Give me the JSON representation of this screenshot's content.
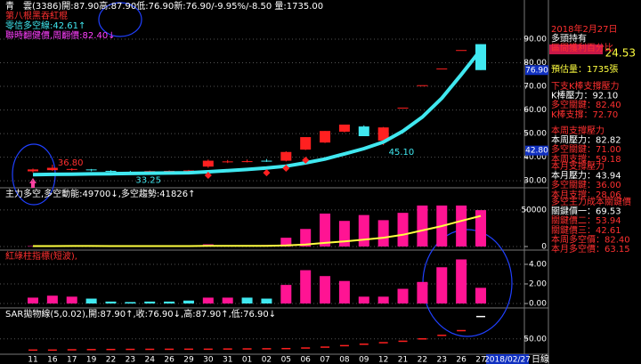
{
  "chart_data": [
    {
      "type": "candlestick",
      "title": "青　雲(3386)開:87.90高:87.90低:76.90新:76.90/-9.95%/-8.50 量:1735.00",
      "subtitles": [
        "第八根黑吞紅棍",
        "零信多空線:42.61↑",
        "聯時翻健價,周翻價:82.40↓"
      ],
      "categories": [
        "11",
        "16",
        "17",
        "19",
        "22",
        "23",
        "24",
        "26",
        "29",
        "30",
        "31",
        "01",
        "02",
        "05",
        "06",
        "07",
        "08",
        "09",
        "12",
        "21",
        "22",
        "23",
        "26",
        "27"
      ],
      "open": [
        34.0,
        34.5,
        34.8,
        34.8,
        34.2,
        33.8,
        33.8,
        34.0,
        34.2,
        36.0,
        38.0,
        38.2,
        38.5,
        38.5,
        43.2,
        46.2,
        50.8,
        53.0,
        47.0,
        61.0,
        70.5,
        77.6,
        85.4,
        87.9
      ],
      "high": [
        35.2,
        36.8,
        35.3,
        35.0,
        34.5,
        34.2,
        34.3,
        34.4,
        34.6,
        39.0,
        38.8,
        39.0,
        39.2,
        42.5,
        48.5,
        51.1,
        53.8,
        53.5,
        52.8,
        61.0,
        70.5,
        77.6,
        85.4,
        87.9
      ],
      "low": [
        33.5,
        34.2,
        34.3,
        34.0,
        33.6,
        33.25,
        33.5,
        33.8,
        34.0,
        35.5,
        37.5,
        37.8,
        38.0,
        38.2,
        43.0,
        46.0,
        50.5,
        48.9,
        45.1,
        61.0,
        70.5,
        77.6,
        85.4,
        76.9
      ],
      "close": [
        34.8,
        35.5,
        35.0,
        34.5,
        34.0,
        33.6,
        34.1,
        34.2,
        34.4,
        38.5,
        38.2,
        38.3,
        38.3,
        42.2,
        48.5,
        51.1,
        53.8,
        48.9,
        52.6,
        61.0,
        70.5,
        77.6,
        85.4,
        76.9
      ],
      "up_color": "#ff2020",
      "down_color": "#40e8f0",
      "line_values": [
        32.6,
        32.7,
        32.8,
        32.9,
        33.0,
        33.1,
        33.2,
        33.3,
        33.4,
        33.8,
        34.3,
        34.8,
        35.4,
        36.2,
        37.6,
        39.2,
        41.4,
        43.6,
        46.4,
        51.0,
        57.0,
        65.0,
        75.0,
        85.5
      ],
      "line_color": "#40e8f0",
      "dots": [
        null,
        null,
        null,
        null,
        null,
        null,
        null,
        null,
        null,
        32.3,
        null,
        null,
        33.4,
        35.3,
        38.7,
        null,
        null,
        null,
        null,
        null,
        null,
        null,
        null,
        null
      ],
      "dot_color": "#ff2020",
      "annotations": [
        {
          "value": 36.8,
          "label": "36.80"
        },
        {
          "value": 33.25,
          "label": "33.25"
        },
        {
          "value": 45.1,
          "label": "45.10"
        }
      ],
      "price_tags": [
        {
          "value": 76.9,
          "label": "76.90"
        },
        {
          "value": 42.8,
          "label": "42.80"
        }
      ],
      "ylim": [
        27.4,
        96.8
      ],
      "yticks": [
        {
          "value": 90,
          "label": "90.00"
        },
        {
          "value": 80,
          "label": "80.00"
        },
        {
          "value": 70,
          "label": "70.00"
        },
        {
          "value": 60,
          "label": "60.00"
        },
        {
          "value": 50,
          "label": "50.00"
        },
        {
          "value": 40,
          "label": "40.00"
        },
        {
          "value": 30,
          "label": "30.00"
        }
      ],
      "grid": true
    },
    {
      "type": "bar",
      "title": "主力多空,多空動能:49700↓,多空趨勢:41826↑",
      "values": [
        600,
        900,
        700,
        500,
        500,
        400,
        600,
        500,
        500,
        3000,
        900,
        1200,
        2000,
        12000,
        24000,
        45000,
        35000,
        43000,
        36000,
        46000,
        56000,
        56000,
        56000,
        49700
      ],
      "color": "#ff1493",
      "line_values": [
        600,
        650,
        700,
        680,
        640,
        600,
        600,
        590,
        580,
        800,
        850,
        900,
        1000,
        1600,
        2800,
        5000,
        7000,
        9500,
        12000,
        16000,
        22000,
        28000,
        35000,
        41826
      ],
      "line_color": "#ffff40",
      "ylim": [
        0,
        79000
      ],
      "yticks": [
        50000,
        0
      ],
      "grid": true
    },
    {
      "type": "bar",
      "title": "紅綠柱指標(短波),",
      "values": [
        0.6,
        0.8,
        0.7,
        0.5,
        0.2,
        0.15,
        0.2,
        0.2,
        0.3,
        0.6,
        0.6,
        0.6,
        0.5,
        1.9,
        3.4,
        2.8,
        2.3,
        0.7,
        0.7,
        1.5,
        2.2,
        3.7,
        4.5,
        1.6
      ],
      "colors": [
        "#ff1493",
        "#ff1493",
        "#ff1493",
        "#40e8f0",
        "#40e8f0",
        "#40e8f0",
        "#40e8f0",
        "#40e8f0",
        "#40e8f0",
        "#ff1493",
        "#ff1493",
        "#40e8f0",
        "#40e8f0",
        "#ff1493",
        "#ff1493",
        "#ff1493",
        "#ff1493",
        "#ff1493",
        "#ff1493",
        "#ff1493",
        "#ff1493",
        "#ff1493",
        "#ff1493",
        "#ff1493"
      ],
      "ylim": [
        -0.36,
        5.27
      ],
      "yticks": [
        {
          "value": 4,
          "label": "4.00"
        },
        {
          "value": 2,
          "label": "2.00"
        },
        {
          "value": 0,
          "label": "0.00"
        }
      ],
      "grid": true
    },
    {
      "type": "scatter",
      "title": "SAR拋物線(5,0.02),開:87.90↑,收:76.90↓,高:87.90↑,低:76.90↓",
      "values": [
        31,
        31,
        31.5,
        31.8,
        32,
        32.2,
        32.3,
        32.4,
        32.5,
        32.5,
        32.8,
        33,
        33.2,
        33.5,
        34.5,
        36,
        38.5,
        41,
        43.5,
        46,
        50,
        56,
        64,
        87.9
      ],
      "colors": [
        "#ff2020",
        "#ff2020",
        "#ff2020",
        "#ff2020",
        "#ff2020",
        "#ff2020",
        "#ff2020",
        "#ff2020",
        "#ff2020",
        "#ff2020",
        "#ff2020",
        "#ff2020",
        "#ff2020",
        "#ff2020",
        "#ff2020",
        "#ff2020",
        "#ff2020",
        "#ff2020",
        "#ff2020",
        "#ff2020",
        "#ff2020",
        "#ff2020",
        "#ff2020",
        "#ffffff"
      ],
      "ylim": [
        24,
        101
      ],
      "yticks": [
        {
          "value": 50,
          "label": "50.00"
        }
      ],
      "grid": true
    }
  ],
  "info_panel": {
    "groups": [
      [
        {
          "text": "2018年2月27日",
          "color": "#ff3030"
        },
        {
          "text": "多頭持有",
          "color": "#ffffff"
        },
        {
          "text": "區間獲利百分比",
          "color": "#ff3030"
        }
      ],
      [
        {
          "text": "預估量：1735張",
          "color": "#ffff40"
        }
      ],
      [
        {
          "text": "下支K棒支撐壓力",
          "color": "#ff3030"
        },
        {
          "text": "K棒壓力：92.10",
          "color": "#ffffff"
        },
        {
          "text": "多空關鍵：82.40",
          "color": "#ff3030"
        },
        {
          "text": "K棒支撐：72.70",
          "color": "#ff3030"
        }
      ],
      [
        {
          "text": "本周支撐壓力",
          "color": "#ff3030"
        },
        {
          "text": "本周壓力：82.82",
          "color": "#ffffff"
        },
        {
          "text": "多空關鍵：71.00",
          "color": "#ff3030"
        },
        {
          "text": "本周支撐：59.18",
          "color": "#ff3030"
        }
      ],
      [
        {
          "text": "本月支撐壓力",
          "color": "#ff3030"
        },
        {
          "text": "本月壓力：43.94",
          "color": "#ffffff"
        },
        {
          "text": "多空關鍵：36.00",
          "color": "#ff3030"
        },
        {
          "text": "本月支撐：28.06",
          "color": "#ff3030"
        }
      ],
      [
        {
          "text": "多空主力成本關鍵價",
          "color": "#ff3030"
        },
        {
          "text": "關鍵價一：69.53",
          "color": "#ffffff"
        },
        {
          "text": "關鍵價二：53.94",
          "color": "#ff3030"
        },
        {
          "text": "關鍵價三：42.61",
          "color": "#ff3030"
        },
        {
          "text": "本周多空價：82.40",
          "color": "#ff3030"
        },
        {
          "text": "本月多空價：63.15",
          "color": "#ff3030"
        }
      ]
    ],
    "profit": "24.53"
  },
  "date_tag": "2018/02/27",
  "period": "日線"
}
